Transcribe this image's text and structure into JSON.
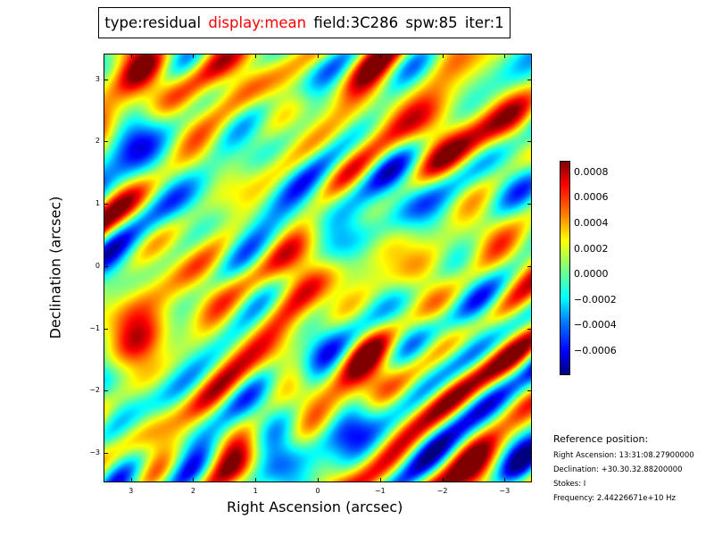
{
  "title": {
    "type": "type:residual",
    "display": "display:mean",
    "field": "field:3C286",
    "spw": "spw:85",
    "iter": "iter:1",
    "display_color": "#ff0000"
  },
  "chart_data": {
    "type": "heatmap",
    "xlabel": "Right Ascension (arcsec)",
    "ylabel": "Declination (arcsec)",
    "xlim": [
      3.44,
      -3.44
    ],
    "ylim": [
      -3.47,
      3.41
    ],
    "xticks": [
      3,
      2,
      1,
      0,
      -1,
      -2,
      -3
    ],
    "xtick_labels": [
      "3",
      "2",
      "1",
      "0",
      "−1",
      "−2",
      "−3"
    ],
    "yticks": [
      3,
      2,
      1,
      0,
      -1,
      -2,
      -3
    ],
    "ytick_labels": [
      "3",
      "2",
      "1",
      "0",
      "−1",
      "−2",
      "−3"
    ],
    "colormap": "jet",
    "colorbar": {
      "range": [
        -0.00079,
        0.00089
      ],
      "ticks": [
        0.0008,
        0.0006,
        0.0004,
        0.0002,
        0.0,
        -0.0002,
        -0.0004,
        -0.0006
      ],
      "tick_labels": [
        "0.0008",
        "0.0006",
        "0.0004",
        "0.0002",
        "0.0000",
        "−0.0002",
        "−0.0004",
        "−0.0006"
      ]
    }
  },
  "reference": {
    "heading": "Reference position:",
    "ra": "Right Ascension: 13:31:08.27900000",
    "dec": "Declination: +30.30.32.88200000",
    "stokes": "Stokes: I",
    "freq": "Frequency: 2.44226671e+10 Hz"
  }
}
